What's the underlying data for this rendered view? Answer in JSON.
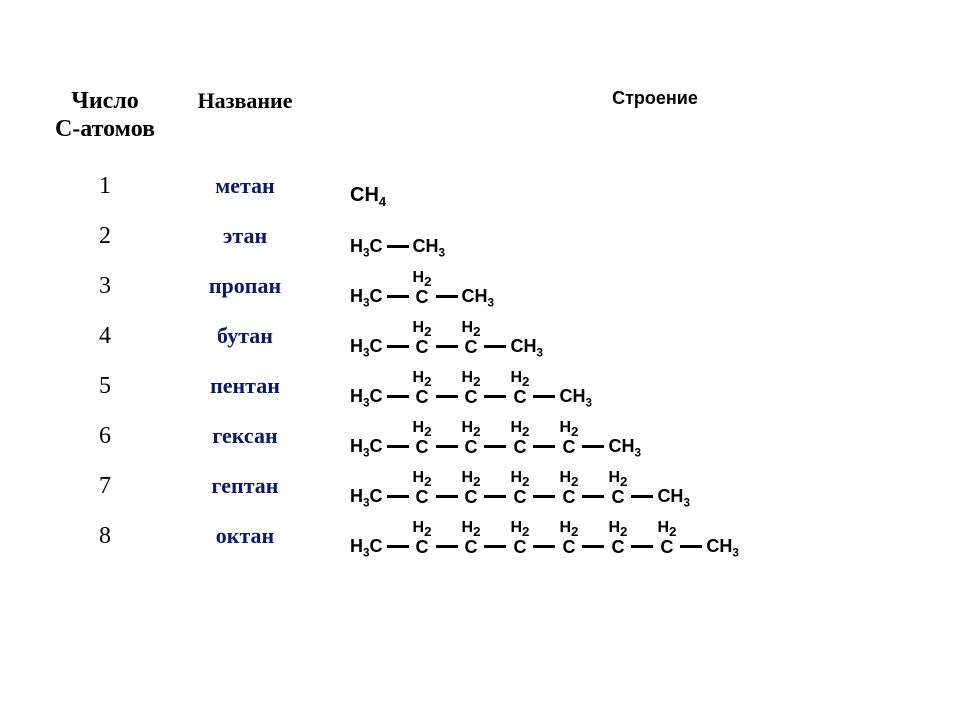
{
  "header": {
    "col_num_l1": "Число",
    "col_num_l2": "С-атомов",
    "col_name": "Название",
    "col_struct": "Строение"
  },
  "name_color": "#0a1a6b",
  "rows": [
    {
      "n": "1",
      "name": "метан",
      "prefix": "CH",
      "prefix_sub": "4",
      "mids": 0,
      "suffix": "",
      "suffix_sub": ""
    },
    {
      "n": "2",
      "name": "этан",
      "prefix": "H",
      "prefix_sub": "3",
      "prefix2": "C",
      "mids": 0,
      "suffix": "CH",
      "suffix_sub": "3"
    },
    {
      "n": "3",
      "name": "пропан",
      "prefix": "H",
      "prefix_sub": "3",
      "prefix2": "C",
      "mids": 1,
      "suffix": "CH",
      "suffix_sub": "3"
    },
    {
      "n": "4",
      "name": "бутан",
      "prefix": "H",
      "prefix_sub": "3",
      "prefix2": "C",
      "mids": 2,
      "suffix": "CH",
      "suffix_sub": "3"
    },
    {
      "n": "5",
      "name": "пентан",
      "prefix": "H",
      "prefix_sub": "3",
      "prefix2": "C",
      "mids": 3,
      "suffix": "CH",
      "suffix_sub": "3"
    },
    {
      "n": "6",
      "name": "гексан",
      "prefix": "H",
      "prefix_sub": "3",
      "prefix2": "C",
      "mids": 4,
      "suffix": "CH",
      "suffix_sub": "3"
    },
    {
      "n": "7",
      "name": "гептан",
      "prefix": "H",
      "prefix_sub": "3",
      "prefix2": "C",
      "mids": 5,
      "suffix": "CH",
      "suffix_sub": "3"
    },
    {
      "n": "8",
      "name": "октан",
      "prefix": "H",
      "prefix_sub": "3",
      "prefix2": "C",
      "mids": 6,
      "suffix": "CH",
      "suffix_sub": "3"
    }
  ],
  "mid_top": "H",
  "mid_top_sub": "2",
  "mid_bot": "C"
}
